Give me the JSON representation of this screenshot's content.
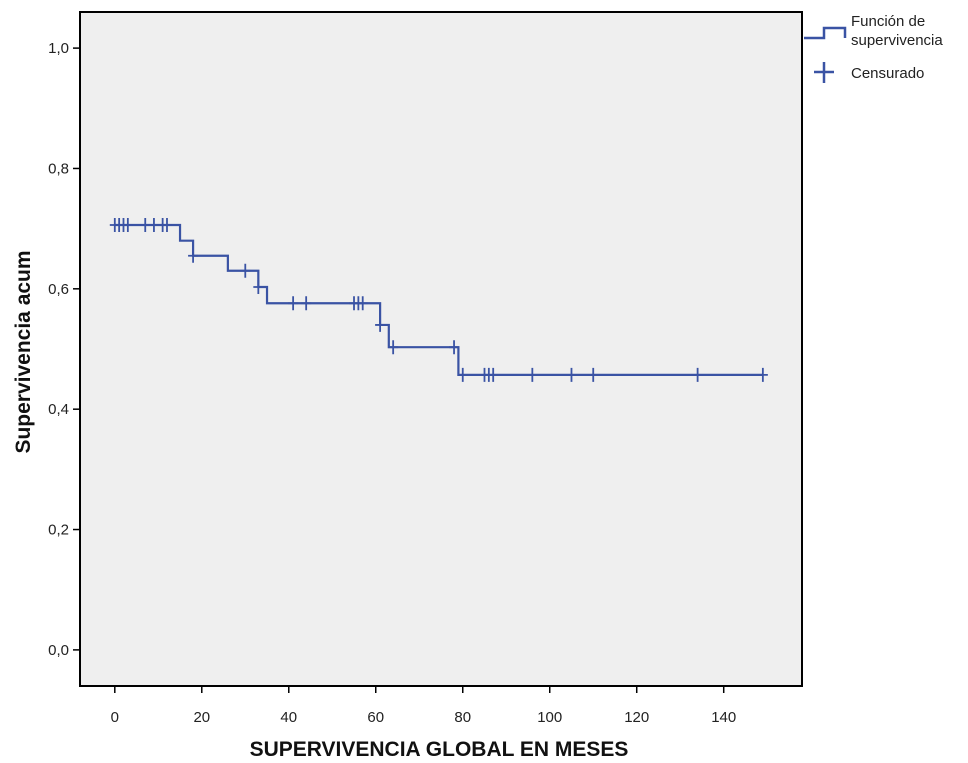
{
  "chart_data": {
    "type": "line",
    "xlabel": "SUPERVIVENCIA GLOBAL EN MESES",
    "ylabel": "Supervivencia acum",
    "xlim": [
      -8,
      158
    ],
    "ylim": [
      -0.06,
      1.06
    ],
    "x_ticks": [
      0,
      20,
      40,
      60,
      80,
      100,
      120,
      140
    ],
    "x_tick_labels": [
      "0",
      "20",
      "40",
      "60",
      "80",
      "100",
      "120",
      "140"
    ],
    "y_ticks": [
      0.0,
      0.2,
      0.4,
      0.6,
      0.8,
      1.0
    ],
    "y_tick_labels": [
      "0,0",
      "0,2",
      "0,4",
      "0,6",
      "0,8",
      "1,0"
    ],
    "grid": false,
    "legend_position": "outside-top-right",
    "colors": {
      "series": "#3a53a4",
      "plot_background": "#efefef",
      "frame": "#000000"
    },
    "legend": {
      "line_label": "Función de supervivencia",
      "censor_label": "Censurado"
    },
    "series": [
      {
        "name": "Función de supervivencia",
        "step": true,
        "x": [
          0,
          15,
          18,
          26,
          33,
          35,
          61,
          63,
          79,
          149
        ],
        "y": [
          0.706,
          0.68,
          0.655,
          0.63,
          0.603,
          0.576,
          0.54,
          0.503,
          0.457,
          0.457
        ]
      }
    ],
    "censored": {
      "name": "Censurado",
      "x": [
        0,
        1,
        2,
        3,
        7,
        9,
        11,
        12,
        18,
        30,
        33,
        41,
        44,
        55,
        56,
        57,
        61,
        64,
        78,
        80,
        85,
        86,
        87,
        96,
        105,
        110,
        134,
        149
      ],
      "y": [
        0.706,
        0.706,
        0.706,
        0.706,
        0.706,
        0.706,
        0.706,
        0.706,
        0.655,
        0.63,
        0.603,
        0.576,
        0.576,
        0.576,
        0.576,
        0.576,
        0.54,
        0.503,
        0.503,
        0.457,
        0.457,
        0.457,
        0.457,
        0.457,
        0.457,
        0.457,
        0.457,
        0.457
      ]
    }
  }
}
